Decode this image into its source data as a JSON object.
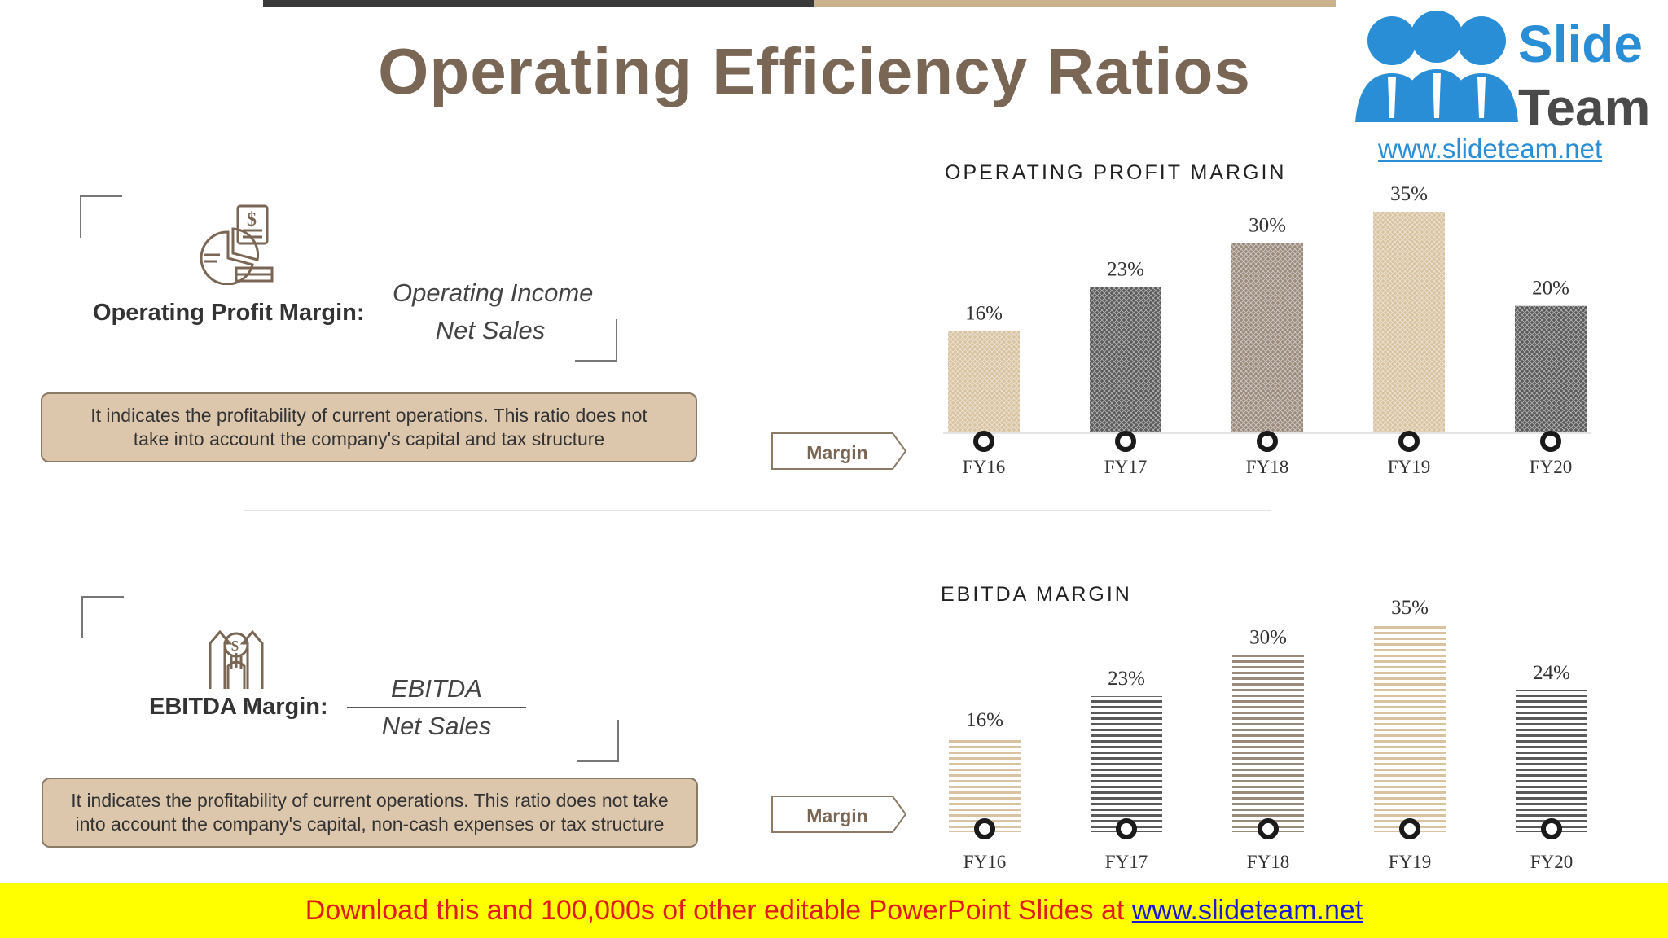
{
  "title": "Operating Efficiency Ratios",
  "logo": {
    "word1": "Slide",
    "word2": "Team",
    "url": "www.slideteam.net"
  },
  "section1": {
    "label": "Operating Profit Margin:",
    "numerator": "Operating Income",
    "denominator": "Net Sales",
    "description_line1": "It indicates the profitability of current operations. This ratio does not",
    "description_line2": "take into account the company's capital and tax structure",
    "tag": "Margin"
  },
  "section2": {
    "label": "EBITDA Margin:",
    "numerator": "EBITDA",
    "denominator": "Net Sales",
    "description_line1": "It indicates the profitability of current operations. This ratio does not take",
    "description_line2": "into account the company's capital, non-cash expenses or tax structure",
    "tag": "Margin"
  },
  "footer": {
    "text": "Download this and 100,000s of other editable PowerPoint Slides at ",
    "link": "www.slideteam.net"
  },
  "colors": {
    "tan": "#d8c29f",
    "dark": "#5a5a5a",
    "taupe": "#9a8a7c",
    "title": "#7a6655"
  },
  "chart_data": [
    {
      "type": "bar",
      "title": "OPERATING PROFIT MARGIN",
      "categories": [
        "FY16",
        "FY17",
        "FY18",
        "FY19",
        "FY20"
      ],
      "values": [
        16,
        23,
        30,
        35,
        20
      ],
      "value_labels": [
        "16%",
        "23%",
        "30%",
        "35%",
        "20%"
      ],
      "bar_colors": [
        "#d8c29f",
        "#5a5a5a",
        "#9a8a7c",
        "#d8c29f",
        "#5a5a5a"
      ],
      "pattern": "crosshatch",
      "ylim": [
        0,
        35
      ]
    },
    {
      "type": "bar",
      "title": "EBITDA MARGIN",
      "categories": [
        "FY16",
        "FY17",
        "FY18",
        "FY19",
        "FY20"
      ],
      "values": [
        16,
        23,
        30,
        35,
        24
      ],
      "value_labels": [
        "16%",
        "23%",
        "30%",
        "35%",
        "24%"
      ],
      "bar_colors": [
        "#d8c29f",
        "#5a5a5a",
        "#9a8a7c",
        "#d8c29f",
        "#5a5a5a"
      ],
      "pattern": "horizontal-lines",
      "ylim": [
        0,
        35
      ]
    }
  ]
}
